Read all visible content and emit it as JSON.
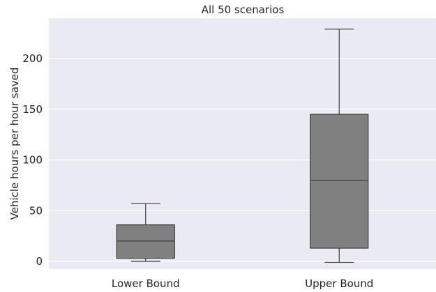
{
  "chart_data": {
    "type": "box",
    "title": "All 50 scenarios",
    "xlabel": "",
    "ylabel": "Vehicle hours per hour saved",
    "ylim": [
      -10,
      240
    ],
    "yticks": [
      0,
      50,
      100,
      150,
      200
    ],
    "categories": [
      "Lower Bound",
      "Upper Bound"
    ],
    "boxes": [
      {
        "category": "Lower Bound",
        "whisker_low": 0,
        "q1": 3,
        "median": 20,
        "q3": 36,
        "whisker_high": 57
      },
      {
        "category": "Upper Bound",
        "whisker_low": -1,
        "q1": 13,
        "median": 80,
        "q3": 145,
        "whisker_high": 229
      }
    ],
    "grid": true,
    "colors": {
      "plot_bg": "#eaeaf2",
      "grid": "#ffffff",
      "box_fill": "#808080",
      "box_edge": "#3d3d3d",
      "text": "#262626"
    }
  }
}
